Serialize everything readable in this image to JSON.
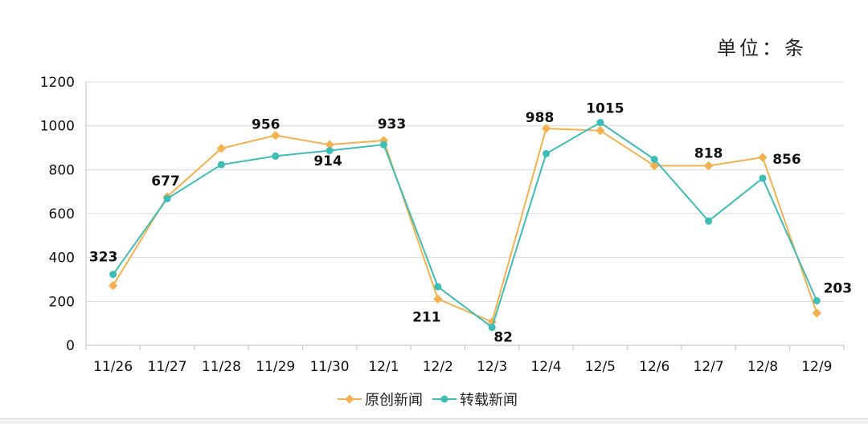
{
  "unit_label": "单位：条",
  "chart_data": {
    "type": "line",
    "categories": [
      "11/26",
      "11/27",
      "11/28",
      "11/29",
      "11/30",
      "12/1",
      "12/2",
      "12/3",
      "12/4",
      "12/5",
      "12/6",
      "12/7",
      "12/8",
      "12/9"
    ],
    "series": [
      {
        "name": "原创新闻",
        "color": "#F6B04E",
        "values": [
          272,
          677,
          897,
          956,
          914,
          933,
          211,
          107,
          988,
          978,
          818,
          818,
          856,
          147
        ]
      },
      {
        "name": "转载新闻",
        "color": "#3CBDB5",
        "values": [
          323,
          668,
          823,
          862,
          887,
          914,
          267,
          82,
          873,
          1015,
          847,
          566,
          761,
          203
        ]
      }
    ],
    "data_labels": [
      {
        "text": "323",
        "x": "11/26",
        "value": 323
      },
      {
        "text": "677",
        "x": "11/27",
        "value": 677
      },
      {
        "text": "956",
        "x": "11/29",
        "value": 956
      },
      {
        "text": "914",
        "x": "11/30",
        "value": 914
      },
      {
        "text": "933",
        "x": "12/1",
        "value": 933
      },
      {
        "text": "211",
        "x": "12/2",
        "value": 211
      },
      {
        "text": "82",
        "x": "12/3",
        "value": 82
      },
      {
        "text": "988",
        "x": "12/4",
        "value": 988
      },
      {
        "text": "1015",
        "x": "12/5",
        "value": 1015
      },
      {
        "text": "818",
        "x": "12/7",
        "value": 818
      },
      {
        "text": "856",
        "x": "12/8",
        "value": 856
      },
      {
        "text": "203",
        "x": "12/9",
        "value": 203
      }
    ],
    "yticks": [
      "0",
      "200",
      "400",
      "600",
      "800",
      "1000",
      "1200"
    ],
    "ylim": [
      0,
      1200
    ],
    "grid": true,
    "legend": "bottom"
  }
}
